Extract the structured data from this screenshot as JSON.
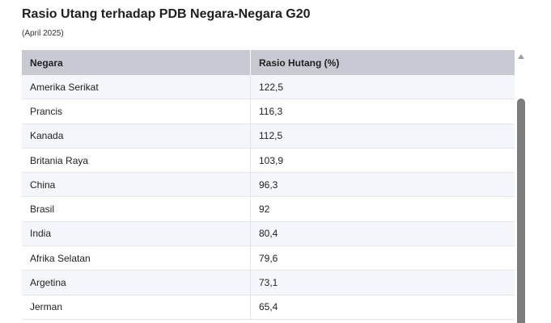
{
  "header": {
    "title": "Rasio Utang terhadap PDB Negara-Negara G20",
    "subtitle": "(April 2025)"
  },
  "table": {
    "columns": [
      "Negara",
      "Rasio Hutang (%)"
    ],
    "rows": [
      [
        "Amerika Serikat",
        "122,5"
      ],
      [
        "Prancis",
        "116,3"
      ],
      [
        "Kanada",
        "112,5"
      ],
      [
        "Britania Raya",
        "103,9"
      ],
      [
        "China",
        "96,3"
      ],
      [
        "Brasil",
        "92"
      ],
      [
        "India",
        "80,4"
      ],
      [
        "Afrika Selatan",
        "79,6"
      ],
      [
        "Argetina",
        "73,1"
      ],
      [
        "Jerman",
        "65,4"
      ]
    ]
  },
  "icons": {
    "scroll_up": "triangle-up-icon"
  }
}
